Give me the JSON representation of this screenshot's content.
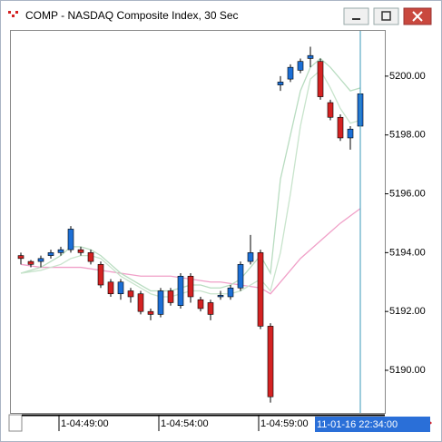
{
  "window": {
    "title": "COMP - NASDAQ Composite Index, 30 Sec"
  },
  "chart_data": {
    "type": "candlestick",
    "categories": [
      null,
      null,
      null,
      null,
      "1-04:49:00",
      null,
      null,
      null,
      null,
      null,
      null,
      null,
      null,
      null,
      "1-04:54:00",
      null,
      null,
      null,
      null,
      null,
      null,
      null,
      null,
      null,
      "1-04:59:00",
      null,
      null,
      null,
      null,
      null,
      null,
      null,
      null,
      null,
      null
    ],
    "crosshair_label": "11-01-16 22:34:00",
    "open": [
      5193.9,
      5193.7,
      5193.7,
      5193.9,
      5194.0,
      5194.1,
      5194.1,
      5194.0,
      5193.6,
      5193.0,
      5192.6,
      5192.7,
      5192.6,
      5192.0,
      5191.9,
      5192.7,
      5192.2,
      5193.2,
      5192.4,
      5192.3,
      5192.5,
      5192.5,
      5192.8,
      5193.7,
      5194.0,
      5191.5,
      5199.7,
      5199.9,
      5200.2,
      5200.6,
      5200.5,
      5199.1,
      5198.6,
      5197.9,
      5198.3
    ],
    "high": [
      5194.0,
      5193.75,
      5193.9,
      5194.1,
      5194.2,
      5194.9,
      5194.2,
      5194.1,
      5193.7,
      5193.1,
      5193.1,
      5192.8,
      5192.7,
      5192.1,
      5192.8,
      5192.8,
      5193.3,
      5193.3,
      5192.5,
      5192.4,
      5192.7,
      5192.9,
      5193.7,
      5194.6,
      5194.1,
      5191.6,
      5200.0,
      5200.4,
      5200.6,
      5201.0,
      5200.6,
      5199.2,
      5198.7,
      5198.3,
      5199.5
    ],
    "low": [
      5193.6,
      5193.5,
      5193.5,
      5193.8,
      5193.9,
      5194.0,
      5193.9,
      5193.6,
      5192.8,
      5192.5,
      5192.4,
      5192.3,
      5191.9,
      5191.7,
      5191.8,
      5192.2,
      5192.1,
      5192.3,
      5192.0,
      5191.7,
      5192.4,
      5192.4,
      5192.7,
      5193.6,
      5191.4,
      5188.9,
      5199.5,
      5199.8,
      5200.1,
      5200.3,
      5199.2,
      5198.5,
      5197.8,
      5197.5,
      5198.2
    ],
    "close": [
      5193.8,
      5193.6,
      5193.8,
      5194.0,
      5194.1,
      5194.8,
      5194.0,
      5193.7,
      5192.9,
      5192.6,
      5193.0,
      5192.5,
      5192.0,
      5191.9,
      5192.7,
      5192.3,
      5193.2,
      5192.5,
      5192.1,
      5191.9,
      5192.55,
      5192.8,
      5193.6,
      5194.0,
      5191.5,
      5189.1,
      5199.8,
      5200.3,
      5200.5,
      5200.7,
      5199.3,
      5198.6,
      5197.9,
      5198.2,
      5199.4
    ],
    "up_color": "#1c6fd6",
    "down_color": "#d42222",
    "overlays": [
      {
        "color": "#f0a0c8",
        "values": [
          5193.6,
          5193.55,
          5193.5,
          5193.5,
          5193.5,
          5193.5,
          5193.5,
          5193.45,
          5193.4,
          5193.35,
          5193.3,
          5193.25,
          5193.2,
          5193.2,
          5193.2,
          5193.2,
          5193.15,
          5193.1,
          5193.05,
          5193.0,
          5193.0,
          5192.95,
          5192.9,
          5192.85,
          5192.8,
          5192.6,
          5193.0,
          5193.4,
          5193.8,
          5194.1,
          5194.4,
          5194.7,
          5195.0,
          5195.25,
          5195.5
        ]
      },
      {
        "color": "#b8dcc0",
        "values": [
          5193.3,
          5193.4,
          5193.5,
          5193.7,
          5193.9,
          5194.2,
          5194.2,
          5194.1,
          5193.9,
          5193.6,
          5193.3,
          5193.1,
          5192.9,
          5192.7,
          5192.7,
          5192.7,
          5192.8,
          5192.9,
          5192.9,
          5192.8,
          5192.8,
          5192.9,
          5193.1,
          5193.5,
          5193.9,
          5193.3,
          5196.5,
          5198.0,
          5199.5,
          5200.3,
          5200.6,
          5200.3,
          5199.9,
          5199.5,
          5199.6
        ]
      },
      {
        "color": "#c8e4cc",
        "values": [
          5193.3,
          5193.35,
          5193.4,
          5193.5,
          5193.6,
          5193.8,
          5193.9,
          5193.9,
          5193.8,
          5193.5,
          5193.2,
          5193.0,
          5192.8,
          5192.6,
          5192.5,
          5192.5,
          5192.6,
          5192.7,
          5192.7,
          5192.6,
          5192.6,
          5192.6,
          5192.7,
          5192.9,
          5193.1,
          5192.7,
          5194.0,
          5196.0,
          5198.3,
          5199.9,
          5200.2,
          5199.6,
          5198.9,
          5198.4,
          5198.5
        ]
      }
    ],
    "ylim": [
      5188.55,
      5201.57
    ],
    "yticks": [
      {
        "value": 5190,
        "label": "5190.00"
      },
      {
        "value": 5192,
        "label": "5192.00"
      },
      {
        "value": 5194,
        "label": "5194.00"
      },
      {
        "value": 5196,
        "label": "5196.00"
      },
      {
        "value": 5198,
        "label": "5198.00"
      },
      {
        "value": 5200,
        "label": "5200.00"
      }
    ]
  }
}
